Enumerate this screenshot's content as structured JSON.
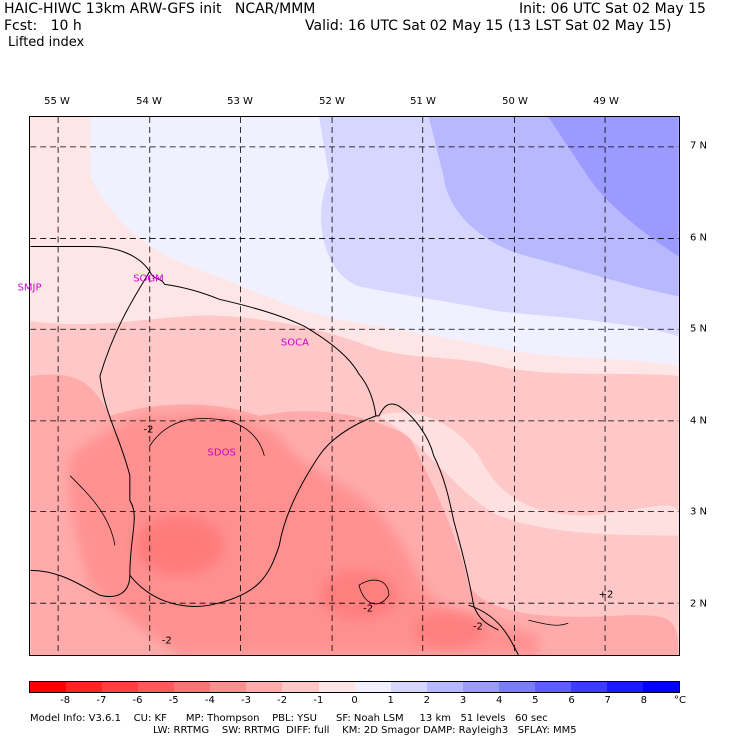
{
  "header": {
    "model_line": "HAIC-HIWC 13km ARW-GFS init   NCAR/MMM",
    "init_line": "Init: 06 UTC Sat 02 May 15",
    "fcst_line": "Fcst:   10 h",
    "valid_line": "Valid: 16 UTC Sat 02 May 15 (13 LST Sat 02 May 15)",
    "field_name": "Lifted index"
  },
  "map": {
    "lon_labels": [
      "55 W",
      "54 W",
      "53 W",
      "52 W",
      "51 W",
      "50 W",
      "49 W"
    ],
    "lat_labels": [
      "7 N",
      "6 N",
      "5 N",
      "4 N",
      "3 N",
      "2 N"
    ],
    "stations": [
      {
        "code": "SMJP",
        "lon": -55.3,
        "lat": 5.45
      },
      {
        "code": "SOGM",
        "lon": -54.0,
        "lat": 5.55
      },
      {
        "code": "SOCA",
        "lon": -52.4,
        "lat": 4.85
      },
      {
        "code": "SDOS",
        "lon": -53.2,
        "lat": 3.65
      }
    ],
    "contour_labels": [
      {
        "text": "-2",
        "lon": -54.0,
        "lat": 3.9
      },
      {
        "text": "-2",
        "lon": -51.6,
        "lat": 1.95
      },
      {
        "text": "-2",
        "lon": -53.8,
        "lat": 1.6
      },
      {
        "text": "-2",
        "lon": -50.4,
        "lat": 1.75
      },
      {
        "text": "+2",
        "lon": -49.0,
        "lat": 2.1
      }
    ]
  },
  "colorbar": {
    "unit": "°C",
    "ticks": [
      "-8",
      "-7",
      "-6",
      "-5",
      "-4",
      "-3",
      "-2",
      "-1",
      "0",
      "1",
      "2",
      "3",
      "4",
      "5",
      "6",
      "7",
      "8"
    ],
    "colors": [
      "#ff0000",
      "#ff2424",
      "#ff4040",
      "#ff5a5a",
      "#ff7373",
      "#ff8e8e",
      "#ffabab",
      "#ffc8c8",
      "#ffe6e6",
      "#f0f0ff",
      "#d6d6ff",
      "#b8b8ff",
      "#9a9aff",
      "#7c7cff",
      "#5e5eff",
      "#3c3cff",
      "#1a1aff",
      "#0000ff"
    ]
  },
  "model_info": {
    "line1": "Model Info: V3.6.1    CU: KF      MP: Thompson    PBL: YSU      SF: Noah LSM     13 km   51 levels   60 sec",
    "line2": "LW: RRTMG    SW: RRTMG  DIFF: full    KM: 2D Smagor DAMP: Rayleigh3   SFLAY: MM5"
  }
}
